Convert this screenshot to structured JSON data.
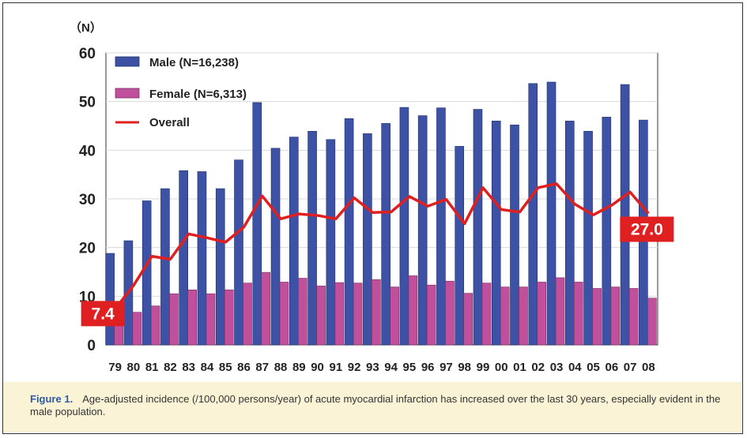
{
  "chart_data": {
    "type": "bar",
    "unit_label": "（N）",
    "categories": [
      "79",
      "80",
      "81",
      "82",
      "83",
      "84",
      "85",
      "86",
      "87",
      "88",
      "89",
      "90",
      "91",
      "92",
      "93",
      "94",
      "95",
      "96",
      "97",
      "98",
      "99",
      "00",
      "01",
      "02",
      "03",
      "04",
      "05",
      "06",
      "07",
      "08"
    ],
    "ylim": [
      0,
      60
    ],
    "yticks": [
      0,
      10,
      20,
      30,
      40,
      50,
      60
    ],
    "grid": true,
    "legend_position": "top-left",
    "series": [
      {
        "name": "Male (N=16,238)",
        "type": "bar",
        "color": "#3d52a4",
        "values": [
          18.8,
          21.4,
          29.6,
          32.1,
          35.8,
          35.6,
          32.1,
          38.0,
          49.8,
          40.4,
          42.7,
          43.9,
          42.2,
          46.5,
          43.4,
          45.5,
          48.8,
          47.1,
          48.7,
          40.8,
          48.4,
          46.0,
          45.2,
          53.7,
          54.0,
          46.0,
          43.9,
          46.8,
          53.5,
          46.2
        ]
      },
      {
        "name": "Female (N=6,313)",
        "type": "bar",
        "color": "#c0509b",
        "values": [
          4.4,
          6.7,
          8.0,
          10.5,
          11.3,
          10.5,
          11.3,
          12.7,
          14.9,
          12.9,
          13.7,
          12.1,
          12.8,
          12.7,
          13.4,
          11.9,
          14.2,
          12.3,
          13.1,
          10.6,
          12.7,
          11.9,
          11.9,
          12.9,
          13.8,
          12.9,
          11.6,
          11.9,
          11.6,
          9.6
        ]
      },
      {
        "name": "Overall",
        "type": "line",
        "color": "#e02020",
        "values": [
          7.4,
          12.2,
          18.2,
          17.6,
          22.8,
          22.0,
          21.1,
          24.2,
          30.6,
          25.9,
          26.9,
          26.6,
          25.9,
          30.2,
          27.2,
          27.3,
          30.5,
          28.5,
          29.9,
          24.9,
          32.3,
          27.8,
          27.3,
          32.3,
          33.1,
          28.9,
          26.7,
          28.7,
          31.4,
          27.0
        ]
      }
    ],
    "callouts": [
      {
        "text": "7.4",
        "category_index": 0
      },
      {
        "text": "27.0",
        "category_index": 29
      }
    ]
  },
  "caption": {
    "label": "Figure 1.",
    "text": "Age-adjusted incidence (/100,000 persons/year) of acute myocardial infarction has increased over the last 30 years, especially evident in the male population."
  }
}
